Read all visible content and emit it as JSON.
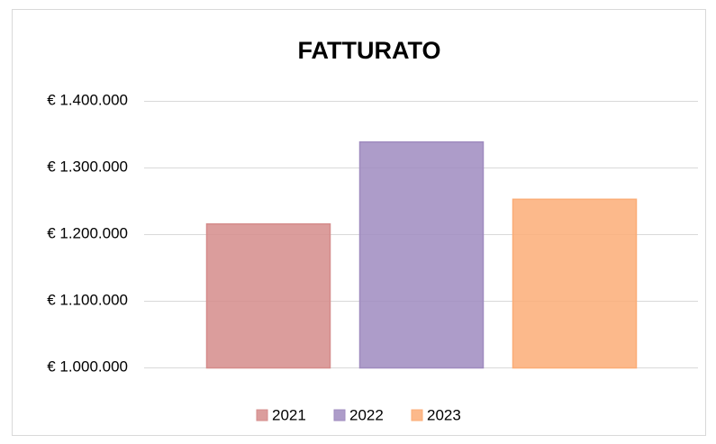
{
  "chart_data": {
    "type": "bar",
    "title": "FATTURATO",
    "series": [
      {
        "name": "2021",
        "color": "#d58c8b",
        "values": [
          1216000
        ]
      },
      {
        "name": "2022",
        "color": "#9f8bbf",
        "values": [
          1339000
        ]
      },
      {
        "name": "2023",
        "color": "#fbad77",
        "values": [
          1253000
        ]
      }
    ],
    "ylim": [
      1000000,
      1400000
    ],
    "yticks": [
      {
        "value": 1000000,
        "label": "€ 1.000.000"
      },
      {
        "value": 1100000,
        "label": "€ 1.100.000"
      },
      {
        "value": 1200000,
        "label": "€ 1.200.000"
      },
      {
        "value": 1300000,
        "label": "€ 1.300.000"
      },
      {
        "value": 1400000,
        "label": "€ 1.400.000"
      }
    ],
    "grid": true,
    "legend": "bottom"
  }
}
